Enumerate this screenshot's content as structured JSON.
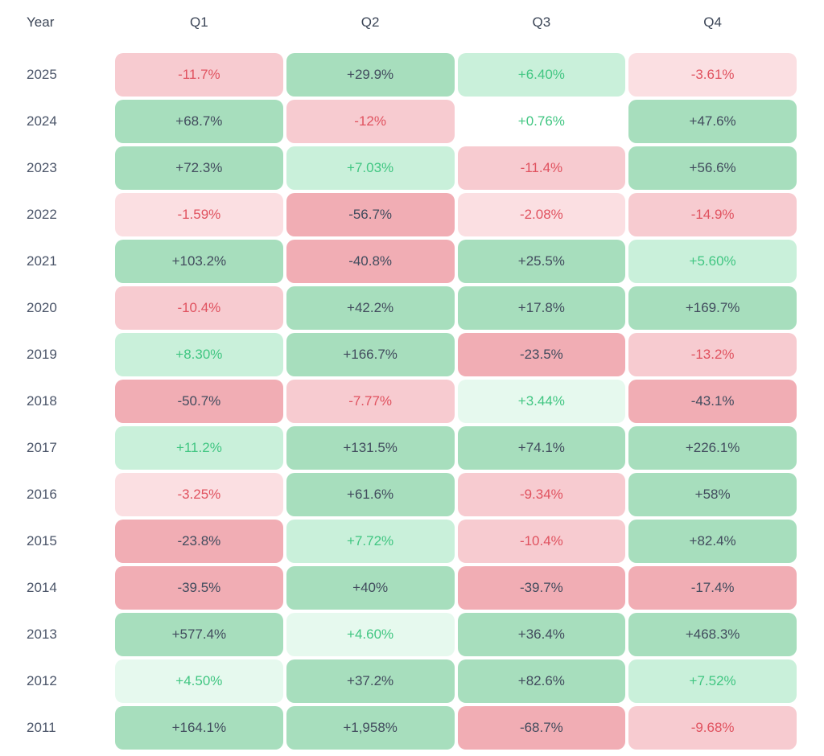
{
  "palette": {
    "bg_green_strong": "#a7debd",
    "bg_green_light": "#c9f0da",
    "bg_green_faint": "#e6f9ee",
    "bg_neutral": "#ffffff",
    "bg_red_faint": "#fbdfe2",
    "bg_red_light": "#f7cbd0",
    "bg_red_strong": "#f1adb4",
    "text_dark": "#424c5e",
    "text_green": "#41c682",
    "text_red": "#e0525f",
    "header_text": "#3c4657",
    "year_text": "#4a5468"
  },
  "chart_data": {
    "type": "heatmap",
    "columns": [
      "Year",
      "Q1",
      "Q2",
      "Q3",
      "Q4"
    ],
    "unit": "%",
    "legend": "green = positive quarterly return, red = negative quarterly return; intensity scales with magnitude",
    "rows": [
      {
        "year": "2025",
        "cells": [
          {
            "text": "-11.7%",
            "value": -11.7,
            "tone": "bg_red_light",
            "fg": "text_red"
          },
          {
            "text": "+29.9%",
            "value": 29.9,
            "tone": "bg_green_strong",
            "fg": "text_dark"
          },
          {
            "text": "+6.40%",
            "value": 6.4,
            "tone": "bg_green_light",
            "fg": "text_green"
          },
          {
            "text": "-3.61%",
            "value": -3.61,
            "tone": "bg_red_faint",
            "fg": "text_red"
          }
        ]
      },
      {
        "year": "2024",
        "cells": [
          {
            "text": "+68.7%",
            "value": 68.7,
            "tone": "bg_green_strong",
            "fg": "text_dark"
          },
          {
            "text": "-12%",
            "value": -12,
            "tone": "bg_red_light",
            "fg": "text_red"
          },
          {
            "text": "+0.76%",
            "value": 0.76,
            "tone": "bg_neutral",
            "fg": "text_green"
          },
          {
            "text": "+47.6%",
            "value": 47.6,
            "tone": "bg_green_strong",
            "fg": "text_dark"
          }
        ]
      },
      {
        "year": "2023",
        "cells": [
          {
            "text": "+72.3%",
            "value": 72.3,
            "tone": "bg_green_strong",
            "fg": "text_dark"
          },
          {
            "text": "+7.03%",
            "value": 7.03,
            "tone": "bg_green_light",
            "fg": "text_green"
          },
          {
            "text": "-11.4%",
            "value": -11.4,
            "tone": "bg_red_light",
            "fg": "text_red"
          },
          {
            "text": "+56.6%",
            "value": 56.6,
            "tone": "bg_green_strong",
            "fg": "text_dark"
          }
        ]
      },
      {
        "year": "2022",
        "cells": [
          {
            "text": "-1.59%",
            "value": -1.59,
            "tone": "bg_red_faint",
            "fg": "text_red"
          },
          {
            "text": "-56.7%",
            "value": -56.7,
            "tone": "bg_red_strong",
            "fg": "text_dark"
          },
          {
            "text": "-2.08%",
            "value": -2.08,
            "tone": "bg_red_faint",
            "fg": "text_red"
          },
          {
            "text": "-14.9%",
            "value": -14.9,
            "tone": "bg_red_light",
            "fg": "text_red"
          }
        ]
      },
      {
        "year": "2021",
        "cells": [
          {
            "text": "+103.2%",
            "value": 103.2,
            "tone": "bg_green_strong",
            "fg": "text_dark"
          },
          {
            "text": "-40.8%",
            "value": -40.8,
            "tone": "bg_red_strong",
            "fg": "text_dark"
          },
          {
            "text": "+25.5%",
            "value": 25.5,
            "tone": "bg_green_strong",
            "fg": "text_dark"
          },
          {
            "text": "+5.60%",
            "value": 5.6,
            "tone": "bg_green_light",
            "fg": "text_green"
          }
        ]
      },
      {
        "year": "2020",
        "cells": [
          {
            "text": "-10.4%",
            "value": -10.4,
            "tone": "bg_red_light",
            "fg": "text_red"
          },
          {
            "text": "+42.2%",
            "value": 42.2,
            "tone": "bg_green_strong",
            "fg": "text_dark"
          },
          {
            "text": "+17.8%",
            "value": 17.8,
            "tone": "bg_green_strong",
            "fg": "text_dark"
          },
          {
            "text": "+169.7%",
            "value": 169.7,
            "tone": "bg_green_strong",
            "fg": "text_dark"
          }
        ]
      },
      {
        "year": "2019",
        "cells": [
          {
            "text": "+8.30%",
            "value": 8.3,
            "tone": "bg_green_light",
            "fg": "text_green"
          },
          {
            "text": "+166.7%",
            "value": 166.7,
            "tone": "bg_green_strong",
            "fg": "text_dark"
          },
          {
            "text": "-23.5%",
            "value": -23.5,
            "tone": "bg_red_strong",
            "fg": "text_dark"
          },
          {
            "text": "-13.2%",
            "value": -13.2,
            "tone": "bg_red_light",
            "fg": "text_red"
          }
        ]
      },
      {
        "year": "2018",
        "cells": [
          {
            "text": "-50.7%",
            "value": -50.7,
            "tone": "bg_red_strong",
            "fg": "text_dark"
          },
          {
            "text": "-7.77%",
            "value": -7.77,
            "tone": "bg_red_light",
            "fg": "text_red"
          },
          {
            "text": "+3.44%",
            "value": 3.44,
            "tone": "bg_green_faint",
            "fg": "text_green"
          },
          {
            "text": "-43.1%",
            "value": -43.1,
            "tone": "bg_red_strong",
            "fg": "text_dark"
          }
        ]
      },
      {
        "year": "2017",
        "cells": [
          {
            "text": "+11.2%",
            "value": 11.2,
            "tone": "bg_green_light",
            "fg": "text_green"
          },
          {
            "text": "+131.5%",
            "value": 131.5,
            "tone": "bg_green_strong",
            "fg": "text_dark"
          },
          {
            "text": "+74.1%",
            "value": 74.1,
            "tone": "bg_green_strong",
            "fg": "text_dark"
          },
          {
            "text": "+226.1%",
            "value": 226.1,
            "tone": "bg_green_strong",
            "fg": "text_dark"
          }
        ]
      },
      {
        "year": "2016",
        "cells": [
          {
            "text": "-3.25%",
            "value": -3.25,
            "tone": "bg_red_faint",
            "fg": "text_red"
          },
          {
            "text": "+61.6%",
            "value": 61.6,
            "tone": "bg_green_strong",
            "fg": "text_dark"
          },
          {
            "text": "-9.34%",
            "value": -9.34,
            "tone": "bg_red_light",
            "fg": "text_red"
          },
          {
            "text": "+58%",
            "value": 58,
            "tone": "bg_green_strong",
            "fg": "text_dark"
          }
        ]
      },
      {
        "year": "2015",
        "cells": [
          {
            "text": "-23.8%",
            "value": -23.8,
            "tone": "bg_red_strong",
            "fg": "text_dark"
          },
          {
            "text": "+7.72%",
            "value": 7.72,
            "tone": "bg_green_light",
            "fg": "text_green"
          },
          {
            "text": "-10.4%",
            "value": -10.4,
            "tone": "bg_red_light",
            "fg": "text_red"
          },
          {
            "text": "+82.4%",
            "value": 82.4,
            "tone": "bg_green_strong",
            "fg": "text_dark"
          }
        ]
      },
      {
        "year": "2014",
        "cells": [
          {
            "text": "-39.5%",
            "value": -39.5,
            "tone": "bg_red_strong",
            "fg": "text_dark"
          },
          {
            "text": "+40%",
            "value": 40,
            "tone": "bg_green_strong",
            "fg": "text_dark"
          },
          {
            "text": "-39.7%",
            "value": -39.7,
            "tone": "bg_red_strong",
            "fg": "text_dark"
          },
          {
            "text": "-17.4%",
            "value": -17.4,
            "tone": "bg_red_strong",
            "fg": "text_dark"
          }
        ]
      },
      {
        "year": "2013",
        "cells": [
          {
            "text": "+577.4%",
            "value": 577.4,
            "tone": "bg_green_strong",
            "fg": "text_dark"
          },
          {
            "text": "+4.60%",
            "value": 4.6,
            "tone": "bg_green_faint",
            "fg": "text_green"
          },
          {
            "text": "+36.4%",
            "value": 36.4,
            "tone": "bg_green_strong",
            "fg": "text_dark"
          },
          {
            "text": "+468.3%",
            "value": 468.3,
            "tone": "bg_green_strong",
            "fg": "text_dark"
          }
        ]
      },
      {
        "year": "2012",
        "cells": [
          {
            "text": "+4.50%",
            "value": 4.5,
            "tone": "bg_green_faint",
            "fg": "text_green"
          },
          {
            "text": "+37.2%",
            "value": 37.2,
            "tone": "bg_green_strong",
            "fg": "text_dark"
          },
          {
            "text": "+82.6%",
            "value": 82.6,
            "tone": "bg_green_strong",
            "fg": "text_dark"
          },
          {
            "text": "+7.52%",
            "value": 7.52,
            "tone": "bg_green_light",
            "fg": "text_green"
          }
        ]
      },
      {
        "year": "2011",
        "cells": [
          {
            "text": "+164.1%",
            "value": 164.1,
            "tone": "bg_green_strong",
            "fg": "text_dark"
          },
          {
            "text": "+1,958%",
            "value": 1958,
            "tone": "bg_green_strong",
            "fg": "text_dark"
          },
          {
            "text": "-68.7%",
            "value": -68.7,
            "tone": "bg_red_strong",
            "fg": "text_dark"
          },
          {
            "text": "-9.68%",
            "value": -9.68,
            "tone": "bg_red_light",
            "fg": "text_red"
          }
        ]
      }
    ]
  }
}
